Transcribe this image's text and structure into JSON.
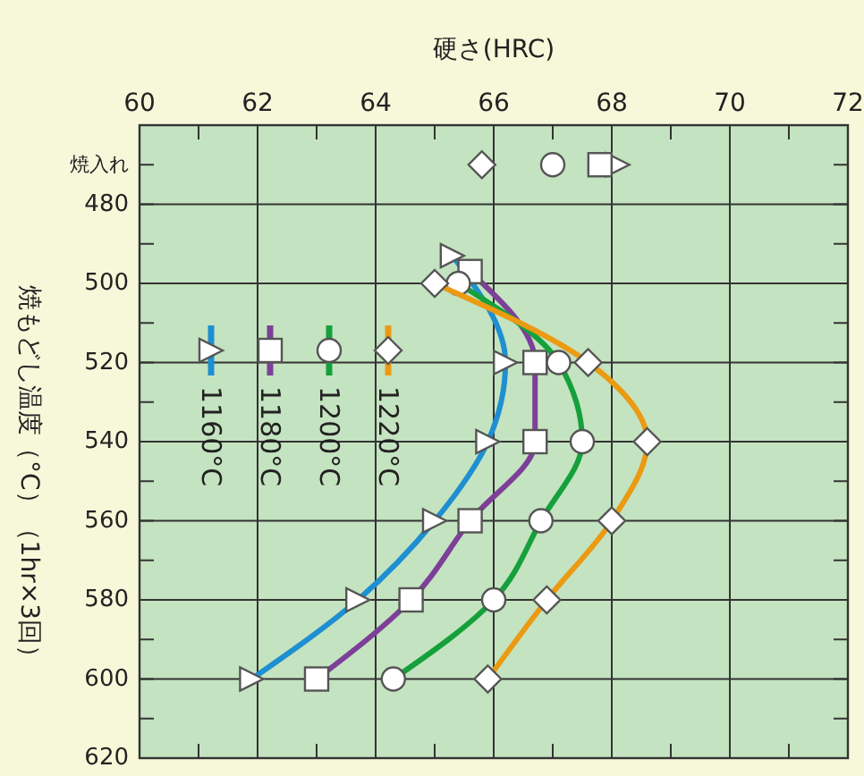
{
  "chart_data": {
    "type": "line",
    "xlabel": "硬さ(HRC)",
    "ylabel": "焼もどし温度（°C）（1hr×3回）",
    "xlim": [
      60,
      72
    ],
    "ylim": [
      620,
      460
    ],
    "xticks": [
      60,
      {
        "value": 61,
        "label": null
      },
      62,
      {
        "value": 63,
        "label": null
      },
      64,
      {
        "value": 65,
        "label": null
      },
      66,
      {
        "value": 67,
        "label": null
      },
      68,
      {
        "value": 69,
        "label": null
      },
      70,
      {
        "value": 71,
        "label": null
      },
      72
    ],
    "yticks": [
      {
        "value": 470,
        "label": "焼入れ"
      },
      480,
      {
        "value": 490,
        "label": null
      },
      500,
      {
        "value": 510,
        "label": null
      },
      520,
      {
        "value": 530,
        "label": null
      },
      540,
      {
        "value": 550,
        "label": null
      },
      560,
      {
        "value": 570,
        "label": null
      },
      580,
      {
        "value": 590,
        "label": null
      },
      600,
      {
        "value": 610,
        "label": null
      },
      620
    ],
    "grid": true,
    "legend": "top left",
    "series": [
      {
        "name": "1160°C",
        "color": "#1e8fd0",
        "marker": "triangle",
        "x": [
          65.3,
          66.2,
          65.9,
          65.0,
          63.7,
          61.9
        ],
        "values": [
          493,
          520,
          540,
          560,
          580,
          600
        ]
      },
      {
        "name": "1180°C",
        "color": "#7d3f98",
        "marker": "square",
        "x": [
          65.6,
          66.7,
          66.7,
          65.6,
          64.6,
          63.0
        ],
        "values": [
          497,
          520,
          540,
          560,
          580,
          600
        ]
      },
      {
        "name": "1200°C",
        "color": "#15a03c",
        "marker": "circle",
        "x": [
          65.4,
          67.1,
          67.5,
          66.8,
          66.0,
          64.3
        ],
        "values": [
          500,
          520,
          540,
          560,
          580,
          600
        ]
      },
      {
        "name": "1220°C",
        "color": "#eb9a12",
        "marker": "diamond",
        "x": [
          65.0,
          67.6,
          68.6,
          68.0,
          66.9,
          65.9
        ],
        "values": [
          500,
          520,
          540,
          560,
          580,
          600
        ]
      },
      {
        "type": "scatter",
        "color": "#ffffff",
        "marker": "triangle",
        "x": [
          68.1
        ],
        "values": [
          470
        ]
      },
      {
        "type": "scatter",
        "color": "#ffffff",
        "marker": "square",
        "x": [
          67.8
        ],
        "values": [
          470
        ]
      },
      {
        "type": "scatter",
        "color": "#ffffff",
        "marker": "circle",
        "x": [
          67.0
        ],
        "values": [
          470
        ]
      },
      {
        "type": "scatter",
        "color": "#ffffff",
        "marker": "diamond",
        "x": [
          65.8
        ],
        "values": [
          470
        ]
      }
    ]
  }
}
